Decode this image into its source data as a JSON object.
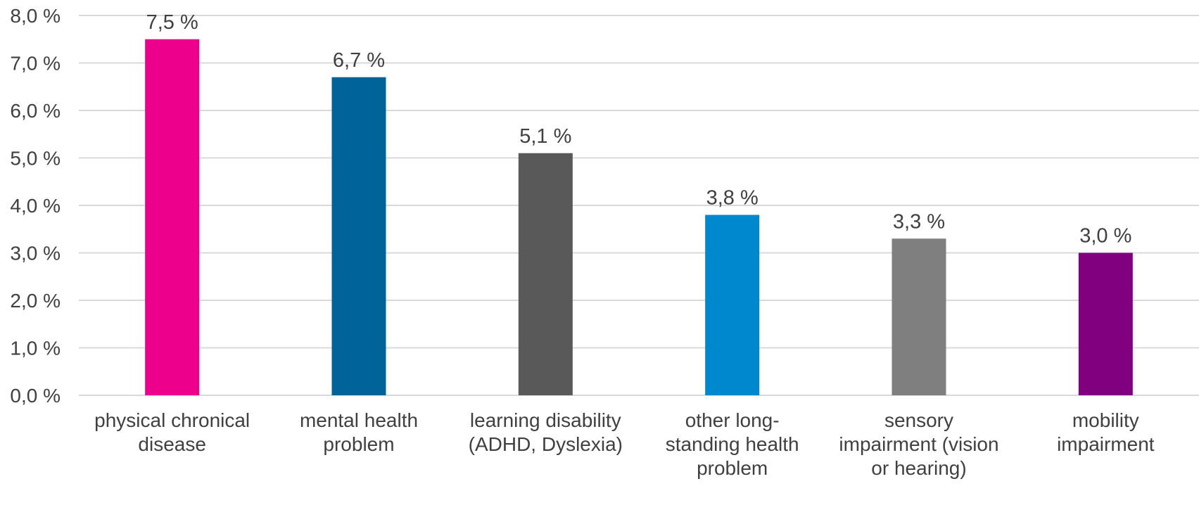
{
  "chart_data": {
    "type": "bar",
    "categories": [
      [
        "physical chronical",
        "disease"
      ],
      [
        "mental health",
        "problem"
      ],
      [
        "learning disability",
        "(ADHD, Dyslexia)"
      ],
      [
        "other long-",
        "standing health",
        "problem"
      ],
      [
        "sensory",
        "impairment (vision",
        "or hearing)"
      ],
      [
        "mobility",
        "impairment"
      ]
    ],
    "values": [
      7.5,
      6.7,
      5.1,
      3.8,
      3.3,
      3.0
    ],
    "data_labels": [
      "7,5 %",
      "6,7 %",
      "5,1 %",
      "3,8 %",
      "3,3 %",
      "3,0 %"
    ],
    "bar_colors": [
      "#EC008C",
      "#00639A",
      "#595959",
      "#0088CE",
      "#7F7F7F",
      "#800080"
    ],
    "y_ticks": [
      0,
      1,
      2,
      3,
      4,
      5,
      6,
      7,
      8
    ],
    "y_tick_labels": [
      "0,0 %",
      "1,0 %",
      "2,0 %",
      "3,0 %",
      "4,0 %",
      "5,0 %",
      "6,0 %",
      "7,0 %",
      "8,0 %"
    ],
    "ylim": [
      0,
      8
    ],
    "grid": true,
    "legend": "none",
    "title": "",
    "xlabel": "",
    "ylabel": ""
  },
  "colors": {
    "gridline": "#D9D9D9",
    "text": "#404040"
  }
}
